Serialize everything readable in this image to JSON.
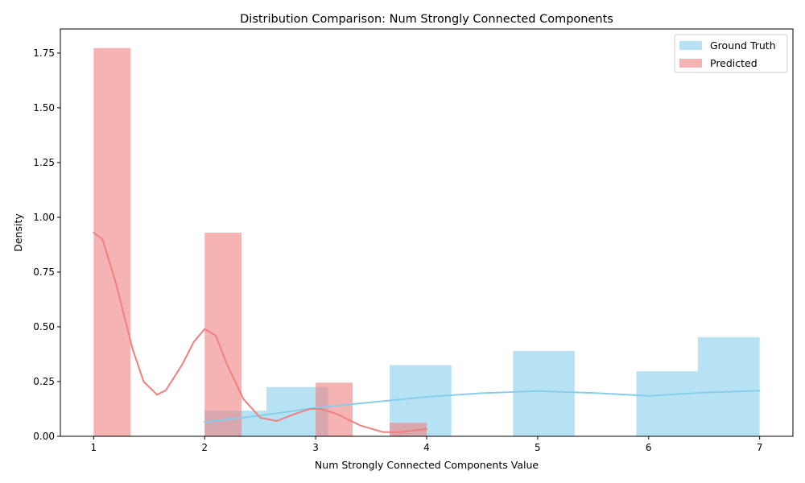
{
  "chart_data": {
    "type": "bar",
    "title": "Distribution Comparison: Num Strongly Connected Components",
    "xlabel": "Num Strongly Connected Components Value",
    "ylabel": "Density",
    "xlim": [
      0.7,
      7.3
    ],
    "ylim": [
      0,
      1.86
    ],
    "xticks": [
      1,
      2,
      3,
      4,
      5,
      6,
      7
    ],
    "yticks": [
      0.0,
      0.25,
      0.5,
      0.75,
      1.0,
      1.25,
      1.5,
      1.75
    ],
    "ytick_labels": [
      "0.00",
      "0.25",
      "0.50",
      "0.75",
      "1.00",
      "1.25",
      "1.50",
      "1.75"
    ],
    "legend_position": "top-right",
    "series": [
      {
        "name": "Ground Truth",
        "color": "#87ceeb",
        "bins": [
          {
            "x0": 2.0,
            "x1": 2.556,
            "value": 0.117
          },
          {
            "x0": 2.556,
            "x1": 3.111,
            "value": 0.225
          },
          {
            "x0": 3.667,
            "x1": 4.222,
            "value": 0.325
          },
          {
            "x0": 4.778,
            "x1": 5.333,
            "value": 0.39
          },
          {
            "x0": 5.889,
            "x1": 6.444,
            "value": 0.297
          },
          {
            "x0": 6.444,
            "x1": 7.0,
            "value": 0.453
          }
        ],
        "kde": [
          [
            2.0,
            0.065
          ],
          [
            2.5,
            0.095
          ],
          [
            3.0,
            0.13
          ],
          [
            3.5,
            0.155
          ],
          [
            4.0,
            0.18
          ],
          [
            4.5,
            0.197
          ],
          [
            5.0,
            0.207
          ],
          [
            5.5,
            0.198
          ],
          [
            6.0,
            0.185
          ],
          [
            6.5,
            0.2
          ],
          [
            7.0,
            0.208
          ]
        ]
      },
      {
        "name": "Predicted",
        "color": "#f08080",
        "bins": [
          {
            "x0": 1.0,
            "x1": 1.333,
            "value": 1.773
          },
          {
            "x0": 2.0,
            "x1": 2.333,
            "value": 0.93
          },
          {
            "x0": 3.0,
            "x1": 3.333,
            "value": 0.245
          },
          {
            "x0": 3.667,
            "x1": 4.0,
            "value": 0.062
          }
        ],
        "kde": [
          [
            1.0,
            0.93
          ],
          [
            1.08,
            0.9
          ],
          [
            1.2,
            0.7
          ],
          [
            1.35,
            0.4
          ],
          [
            1.45,
            0.25
          ],
          [
            1.57,
            0.19
          ],
          [
            1.65,
            0.21
          ],
          [
            1.8,
            0.33
          ],
          [
            1.9,
            0.43
          ],
          [
            2.0,
            0.49
          ],
          [
            2.1,
            0.46
          ],
          [
            2.2,
            0.33
          ],
          [
            2.35,
            0.17
          ],
          [
            2.5,
            0.085
          ],
          [
            2.65,
            0.07
          ],
          [
            2.8,
            0.1
          ],
          [
            2.95,
            0.125
          ],
          [
            3.05,
            0.125
          ],
          [
            3.2,
            0.1
          ],
          [
            3.4,
            0.05
          ],
          [
            3.6,
            0.02
          ],
          [
            3.75,
            0.018
          ],
          [
            3.9,
            0.028
          ],
          [
            4.0,
            0.033
          ]
        ]
      }
    ]
  }
}
